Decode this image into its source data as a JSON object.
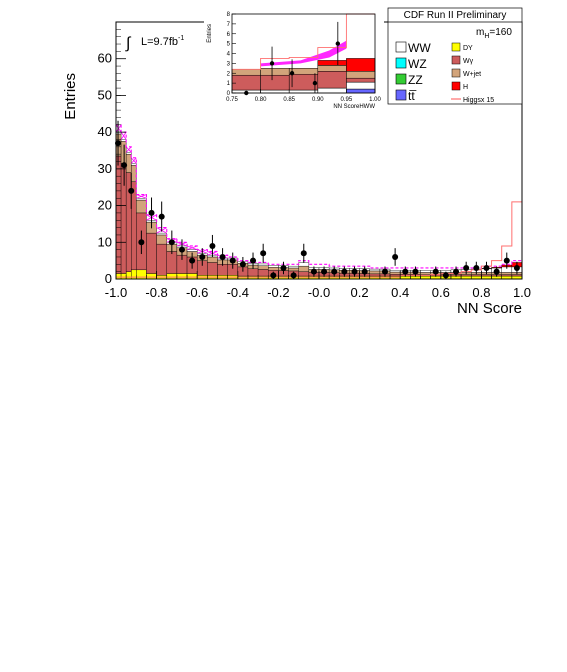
{
  "chart_data": {
    "type": "bar",
    "title": "CDF Run II Preliminary",
    "xlabel": "NN Score",
    "ylabel": "Entries",
    "xlim": [
      -1.0,
      1.0
    ],
    "ylim": [
      0,
      70
    ],
    "xticks": [
      "-1.0",
      "-0.8",
      "-0.6",
      "-0.4",
      "-0.2",
      "-0.0",
      "0.2",
      "0.4",
      "0.6",
      "0.8",
      "1.0"
    ],
    "yticks": [
      "0",
      "10",
      "20",
      "30",
      "40",
      "50",
      "60"
    ],
    "lumi": {
      "prefix": "L=9.7fb",
      "sup": "-1"
    },
    "mass": {
      "prefix": "m",
      "sub": "H",
      "suffix": "=160"
    },
    "legend": {
      "placement": "top-right",
      "left": [
        "WW",
        "WZ",
        "ZZ",
        "tt̅"
      ],
      "right": [
        "DY",
        "Wγ",
        "W+jet",
        "H",
        "Higgsx 15"
      ]
    },
    "colors": {
      "WW": "#ffffff",
      "WZ": "#00ffff",
      "ZZ": "#33cc33",
      "tt": "#6666ff",
      "DY": "#ffff00",
      "Wgamma": "#cd5c5c",
      "Wjet": "#d2a47b",
      "H": "#ff0000",
      "Higgsx15": "#ff6f6f",
      "data": "#000000",
      "uncertainty": "#ff00ff"
    },
    "bin_edges": [
      -1.0,
      -0.975,
      -0.95,
      -0.925,
      -0.9,
      -0.85,
      -0.8,
      -0.75,
      -0.7,
      -0.65,
      -0.6,
      -0.55,
      -0.5,
      -0.45,
      -0.4,
      -0.35,
      -0.3,
      -0.25,
      -0.2,
      -0.15,
      -0.1,
      -0.05,
      0.0,
      0.05,
      0.1,
      0.15,
      0.2,
      0.25,
      0.3,
      0.35,
      0.4,
      0.45,
      0.5,
      0.55,
      0.6,
      0.65,
      0.7,
      0.75,
      0.8,
      0.85,
      0.9,
      0.95,
      1.0
    ],
    "series": [
      {
        "name": "DY",
        "values": [
          1.5,
          1.5,
          2.0,
          2.5,
          2.5,
          1.5,
          1.0,
          1.5,
          1.5,
          1.5,
          1.0,
          1.0,
          1.0,
          1.0,
          0.8,
          0.8,
          0.8,
          0.8,
          0.8,
          0.8,
          0.8,
          0.8,
          0.8,
          0.8,
          0.8,
          0.8,
          0.8,
          0.8,
          0.8,
          0.8,
          0.8,
          0.8,
          0.8,
          0.8,
          0.8,
          0.8,
          0.8,
          0.8,
          0.8,
          0.8,
          0.8,
          0.8
        ]
      },
      {
        "name": "Wγ",
        "values": [
          32.0,
          30.0,
          27.0,
          24.0,
          15.5,
          11.0,
          8.5,
          6.0,
          5.0,
          4.5,
          4.0,
          3.5,
          3.0,
          3.0,
          2.5,
          2.0,
          1.8,
          1.6,
          1.5,
          1.4,
          1.2,
          1.0,
          1.0,
          0.9,
          0.8,
          0.8,
          0.7,
          0.6,
          0.6,
          0.5,
          0.5,
          0.5,
          0.4,
          0.4,
          0.4,
          0.4,
          0.4,
          0.4,
          0.4,
          0.4,
          0.4,
          0.4
        ]
      },
      {
        "name": "W+jet",
        "values": [
          6.0,
          6.0,
          5.0,
          4.5,
          3.5,
          3.0,
          2.5,
          2.0,
          2.0,
          1.5,
          1.5,
          1.5,
          1.2,
          1.2,
          1.0,
          1.0,
          1.0,
          0.8,
          0.8,
          0.8,
          1.5,
          0.8,
          0.8,
          0.8,
          0.8,
          0.8,
          0.8,
          0.8,
          0.8,
          0.6,
          0.6,
          0.6,
          0.6,
          0.6,
          0.6,
          0.6,
          0.6,
          0.6,
          0.6,
          0.6,
          0.6,
          0.6
        ]
      },
      {
        "name": "WW",
        "values": [
          0.5,
          0.5,
          0.5,
          0.5,
          0.5,
          0.5,
          0.5,
          0.5,
          0.5,
          0.5,
          0.5,
          0.5,
          0.5,
          0.5,
          0.5,
          0.5,
          0.5,
          0.5,
          0.5,
          0.5,
          1.0,
          0.5,
          0.5,
          0.5,
          0.5,
          0.5,
          0.5,
          0.5,
          0.5,
          0.5,
          0.5,
          0.5,
          0.5,
          0.5,
          0.6,
          0.7,
          0.8,
          0.9,
          1.0,
          1.2,
          1.5,
          1.5
        ]
      },
      {
        "name": "H",
        "values": [
          0,
          0,
          0,
          0,
          0,
          0,
          0,
          0,
          0,
          0,
          0,
          0,
          0,
          0,
          0,
          0,
          0,
          0,
          0,
          0,
          0,
          0,
          0,
          0,
          0,
          0,
          0,
          0,
          0,
          0,
          0,
          0,
          0,
          0,
          0,
          0,
          0,
          0,
          0.1,
          0.2,
          0.5,
          1.2
        ]
      }
    ],
    "signal_x15": [
      0.5,
      0.5,
      0.5,
      0.5,
      0.5,
      0.5,
      0.5,
      0.5,
      0.5,
      0.5,
      0.5,
      0.5,
      0.5,
      0.5,
      0.5,
      0.5,
      0.5,
      0.5,
      0.5,
      0.5,
      0.5,
      0.5,
      0.5,
      0.5,
      0.5,
      0.5,
      0.5,
      0.5,
      0.5,
      0.5,
      1.0,
      1.0,
      1.0,
      1.2,
      1.5,
      1.5,
      2.0,
      2.5,
      3.5,
      5.0,
      9.0,
      21.0
    ],
    "uncertainty_top": [
      42.0,
      40.0,
      36.0,
      33.0,
      23.0,
      17.5,
      14.0,
      11.0,
      10.0,
      9.0,
      8.0,
      7.5,
      6.5,
      6.0,
      5.0,
      4.5,
      4.5,
      4.0,
      4.0,
      4.0,
      5.0,
      4.0,
      4.0,
      3.5,
      3.5,
      3.5,
      3.5,
      3.0,
      3.0,
      3.0,
      3.0,
      3.0,
      3.0,
      3.0,
      3.0,
      3.0,
      3.0,
      3.0,
      3.5,
      3.5,
      4.0,
      5.0
    ],
    "data_points": [
      {
        "x": -0.99,
        "y": 37,
        "err": 6.1
      },
      {
        "x": -0.96,
        "y": 31,
        "err": 5.6
      },
      {
        "x": -0.925,
        "y": 24,
        "err": 4.9
      },
      {
        "x": -0.875,
        "y": 10,
        "err": 3.2
      },
      {
        "x": -0.825,
        "y": 18,
        "err": 4.2
      },
      {
        "x": -0.775,
        "y": 17,
        "err": 4.1
      },
      {
        "x": -0.725,
        "y": 10,
        "err": 3.2
      },
      {
        "x": -0.675,
        "y": 8,
        "err": 2.8
      },
      {
        "x": -0.625,
        "y": 5,
        "err": 2.2
      },
      {
        "x": -0.575,
        "y": 6,
        "err": 2.4
      },
      {
        "x": -0.525,
        "y": 9,
        "err": 3.0
      },
      {
        "x": -0.475,
        "y": 6,
        "err": 2.4
      },
      {
        "x": -0.425,
        "y": 5,
        "err": 2.2
      },
      {
        "x": -0.375,
        "y": 4,
        "err": 2.0
      },
      {
        "x": -0.325,
        "y": 5,
        "err": 2.2
      },
      {
        "x": -0.275,
        "y": 7,
        "err": 2.6
      },
      {
        "x": -0.225,
        "y": 1,
        "err": 1.0
      },
      {
        "x": -0.175,
        "y": 3,
        "err": 1.7
      },
      {
        "x": -0.125,
        "y": 1,
        "err": 1.0
      },
      {
        "x": -0.075,
        "y": 7,
        "err": 2.6
      },
      {
        "x": -0.025,
        "y": 2,
        "err": 1.4
      },
      {
        "x": 0.025,
        "y": 2,
        "err": 1.4
      },
      {
        "x": 0.075,
        "y": 2,
        "err": 1.4
      },
      {
        "x": 0.125,
        "y": 2,
        "err": 1.4
      },
      {
        "x": 0.175,
        "y": 2,
        "err": 1.4
      },
      {
        "x": 0.225,
        "y": 2,
        "err": 1.4
      },
      {
        "x": 0.325,
        "y": 2,
        "err": 1.4
      },
      {
        "x": 0.375,
        "y": 6,
        "err": 2.4
      },
      {
        "x": 0.425,
        "y": 2,
        "err": 1.4
      },
      {
        "x": 0.475,
        "y": 2,
        "err": 1.4
      },
      {
        "x": 0.575,
        "y": 2,
        "err": 1.4
      },
      {
        "x": 0.625,
        "y": 1,
        "err": 1.0
      },
      {
        "x": 0.675,
        "y": 2,
        "err": 1.4
      },
      {
        "x": 0.725,
        "y": 3,
        "err": 1.7
      },
      {
        "x": 0.775,
        "y": 3,
        "err": 1.7
      },
      {
        "x": 0.825,
        "y": 3,
        "err": 1.7
      },
      {
        "x": 0.875,
        "y": 2,
        "err": 1.4
      },
      {
        "x": 0.925,
        "y": 5,
        "err": 2.2
      },
      {
        "x": 0.975,
        "y": 3,
        "err": 1.7
      }
    ],
    "inset": {
      "ylabel": "Entries",
      "xlabel": "NN ScoreHWW",
      "xlim": [
        0.75,
        1.0
      ],
      "ylim": [
        0,
        8
      ],
      "xticks": [
        "0.75",
        "0.80",
        "0.85",
        "0.90",
        "0.95",
        "1.00"
      ],
      "yticks": [
        "0",
        "1",
        "2",
        "3",
        "4",
        "5",
        "6",
        "7",
        "8"
      ],
      "bin_edges": [
        0.75,
        0.8,
        0.85,
        0.9,
        0.95,
        1.0
      ],
      "stack": [
        {
          "name": "tt",
          "values": [
            0.0,
            0.0,
            0.0,
            0.0,
            0.4
          ]
        },
        {
          "name": "WW",
          "values": [
            0.3,
            0.3,
            0.3,
            0.5,
            0.7
          ]
        },
        {
          "name": "Wgamma",
          "values": [
            1.5,
            1.5,
            1.6,
            1.7,
            0.4
          ]
        },
        {
          "name": "Wjet",
          "values": [
            0.6,
            0.7,
            0.6,
            0.6,
            0.7
          ]
        },
        {
          "name": "H",
          "values": [
            0.0,
            0.0,
            0.0,
            0.5,
            1.3
          ]
        }
      ],
      "signal_x15": [
        2.4,
        3.5,
        3.6,
        4.6,
        8.0
      ],
      "data_points": [
        {
          "x": 0.775,
          "y": 0,
          "err": 0
        },
        {
          "x": 0.82,
          "y": 3,
          "err": 1.7
        },
        {
          "x": 0.855,
          "y": 2,
          "err": 1.4
        },
        {
          "x": 0.895,
          "y": 1,
          "err": 1.0
        },
        {
          "x": 0.935,
          "y": 5,
          "err": 2.2
        }
      ]
    }
  }
}
